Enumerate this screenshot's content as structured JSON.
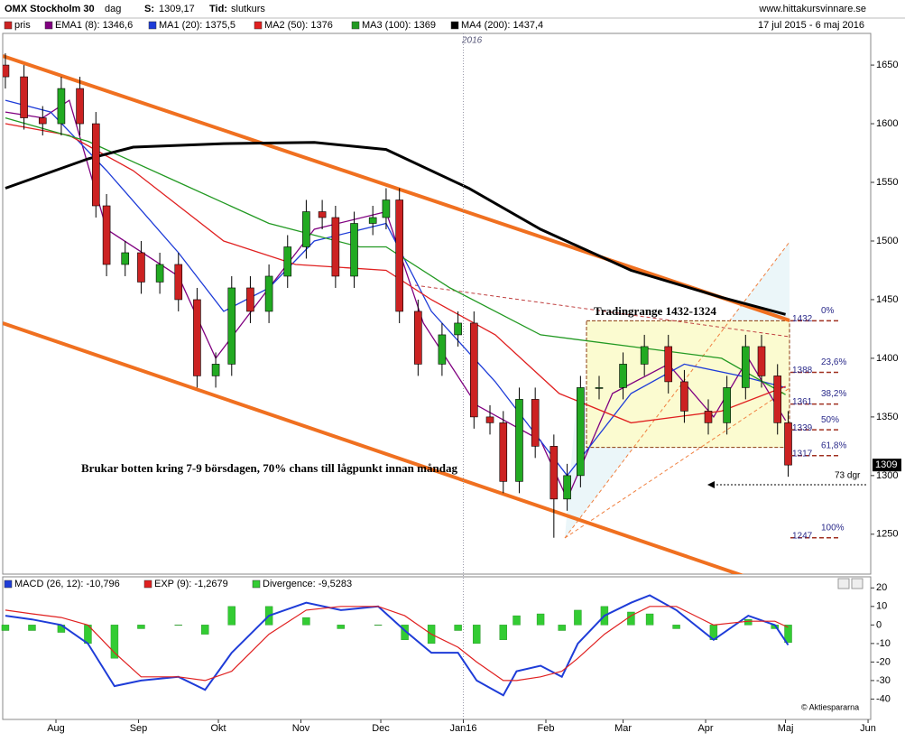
{
  "chart_data": [
    {
      "type": "candlestick",
      "title": "OMX Stockholm 30",
      "interval": "dag",
      "close_label": "S:",
      "close_value": "1309,17",
      "time_label": "Tid:",
      "time_value": "slutkurs",
      "source": "www.hittakursvinnare.se",
      "date_range": "17 jul 2015 - 6 maj 2016",
      "year_marker": "2016",
      "xlim": [
        11,
        337
      ],
      "xticks": [
        {
          "value": 31,
          "label": "Aug"
        },
        {
          "value": 62,
          "label": "Sep"
        },
        {
          "value": 92,
          "label": "Okt"
        },
        {
          "value": 123,
          "label": "Nov"
        },
        {
          "value": 153,
          "label": "Dec"
        },
        {
          "value": 184,
          "label": "Jan16"
        },
        {
          "value": 215,
          "label": "Feb"
        },
        {
          "value": 244,
          "label": "Mar"
        },
        {
          "value": 275,
          "label": "Apr"
        },
        {
          "value": 305,
          "label": "Maj"
        },
        {
          "value": 336,
          "label": "Jun"
        }
      ],
      "ylim": [
        1216,
        1677
      ],
      "yticks": [
        1250,
        1300,
        1350,
        1400,
        1450,
        1500,
        1550,
        1600,
        1650
      ],
      "last_price": 1309,
      "annotations": {
        "range": "Tradingrange 1432-1324",
        "note": "Brukar botten kring 7-9 börsdagen, 70% chans till lågpunkt innan måndag",
        "days": "73 dgr"
      },
      "fib_levels": [
        {
          "level": 1432,
          "pct": "0%"
        },
        {
          "level": 1388,
          "pct": "23,6%"
        },
        {
          "level": 1361,
          "pct": "38,2%"
        },
        {
          "level": 1339,
          "pct": "50%"
        },
        {
          "level": 1317,
          "pct": "61,8%"
        },
        {
          "level": 1247,
          "pct": "100%"
        }
      ],
      "candles": {
        "name": "pris",
        "color": "#cc2222",
        "up_color": "#22aa22",
        "x": [
          12,
          19,
          26,
          33,
          40,
          46,
          50,
          57,
          63,
          70,
          77,
          84,
          91,
          97,
          104,
          111,
          118,
          125,
          131,
          136,
          143,
          150,
          155,
          160,
          167,
          176,
          182,
          188,
          194,
          199,
          205,
          211,
          218,
          223,
          228,
          235,
          244,
          252,
          261,
          267,
          276,
          283,
          290,
          296,
          302,
          306
        ],
        "open": [
          1650,
          1640,
          1605,
          1600,
          1630,
          1600,
          1530,
          1480,
          1490,
          1465,
          1480,
          1450,
          1385,
          1395,
          1460,
          1440,
          1470,
          1495,
          1525,
          1520,
          1470,
          1515,
          1520,
          1535,
          1440,
          1395,
          1420,
          1430,
          1350,
          1345,
          1295,
          1365,
          1325,
          1280,
          1300,
          1375,
          1375,
          1395,
          1410,
          1380,
          1355,
          1345,
          1375,
          1410,
          1385,
          1345
        ],
        "high": [
          1660,
          1650,
          1615,
          1640,
          1640,
          1610,
          1540,
          1500,
          1500,
          1490,
          1490,
          1460,
          1405,
          1470,
          1470,
          1480,
          1505,
          1535,
          1535,
          1530,
          1525,
          1530,
          1545,
          1545,
          1450,
          1430,
          1440,
          1440,
          1360,
          1355,
          1375,
          1375,
          1335,
          1310,
          1385,
          1385,
          1405,
          1420,
          1420,
          1390,
          1365,
          1385,
          1420,
          1420,
          1395,
          1355
        ],
        "low": [
          1630,
          1595,
          1590,
          1590,
          1590,
          1520,
          1470,
          1470,
          1455,
          1455,
          1440,
          1375,
          1375,
          1385,
          1430,
          1430,
          1460,
          1485,
          1510,
          1460,
          1460,
          1505,
          1510,
          1430,
          1385,
          1385,
          1410,
          1340,
          1335,
          1285,
          1285,
          1315,
          1247,
          1270,
          1290,
          1365,
          1365,
          1385,
          1370,
          1345,
          1335,
          1335,
          1365,
          1375,
          1335,
          1299
        ],
        "close": [
          1640,
          1605,
          1600,
          1630,
          1600,
          1530,
          1480,
          1490,
          1465,
          1480,
          1450,
          1385,
          1395,
          1460,
          1440,
          1470,
          1495,
          1525,
          1520,
          1470,
          1515,
          1520,
          1535,
          1440,
          1395,
          1420,
          1430,
          1350,
          1345,
          1295,
          1365,
          1325,
          1280,
          1300,
          1375,
          1375,
          1395,
          1410,
          1380,
          1355,
          1345,
          1375,
          1410,
          1385,
          1345,
          1309
        ]
      },
      "series": [
        {
          "name": "EMA1 (8): 1346,6",
          "color": "#800080",
          "x": [
            12,
            26,
            36,
            50,
            77,
            91,
            111,
            128,
            155,
            169,
            189,
            213,
            223,
            240,
            261,
            278,
            291,
            305
          ],
          "values": [
            1610,
            1605,
            1620,
            1510,
            1470,
            1400,
            1460,
            1510,
            1525,
            1430,
            1360,
            1330,
            1280,
            1370,
            1395,
            1350,
            1400,
            1347
          ]
        },
        {
          "name": "MA1 (20): 1375,5",
          "color": "#1e3cd8",
          "x": [
            12,
            29,
            50,
            77,
            94,
            111,
            128,
            155,
            172,
            196,
            223,
            247,
            267,
            288,
            305
          ],
          "values": [
            1620,
            1610,
            1560,
            1490,
            1440,
            1460,
            1500,
            1515,
            1440,
            1380,
            1300,
            1370,
            1395,
            1385,
            1375
          ]
        },
        {
          "name": "MA2 (50): 1376",
          "color": "#e02020",
          "x": [
            12,
            36,
            60,
            94,
            121,
            155,
            172,
            196,
            220,
            247,
            281,
            305
          ],
          "values": [
            1600,
            1590,
            1560,
            1500,
            1480,
            1475,
            1450,
            1420,
            1370,
            1345,
            1355,
            1376
          ]
        },
        {
          "name": "MA3 (100): 1369",
          "color": "#229922",
          "x": [
            12,
            43,
            77,
            111,
            145,
            155,
            179,
            213,
            247,
            281,
            305
          ],
          "values": [
            1605,
            1585,
            1550,
            1515,
            1495,
            1495,
            1460,
            1420,
            1410,
            1400,
            1369
          ]
        },
        {
          "name": "MA4 (200): 1437,4",
          "color": "#000000",
          "width": 3,
          "x": [
            12,
            43,
            60,
            94,
            128,
            155,
            186,
            213,
            247,
            281,
            305
          ],
          "values": [
            1545,
            1570,
            1580,
            1583,
            1584,
            1578,
            1545,
            1510,
            1475,
            1452,
            1437.4
          ]
        }
      ]
    },
    {
      "type": "macd",
      "copyright": "© Aktiespararna",
      "xlim": [
        11,
        337
      ],
      "ylim": [
        -51,
        26
      ],
      "yticks": [
        -40,
        -30,
        -20,
        -10,
        0,
        10,
        20
      ],
      "x": [
        12,
        22,
        33,
        43,
        53,
        63,
        77,
        87,
        97,
        111,
        125,
        138,
        152,
        162,
        172,
        182,
        189,
        199,
        204,
        213,
        221,
        227,
        237,
        247,
        254,
        264,
        278,
        291,
        301,
        306
      ],
      "series": [
        {
          "name": "MACD (26, 12): -10,796",
          "color": "#1e3cd8",
          "style": "line",
          "values": [
            5,
            3,
            0,
            -10,
            -33,
            -30,
            -28,
            -35,
            -15,
            5,
            12,
            8,
            10,
            -3,
            -15,
            -15,
            -30,
            -38,
            -25,
            -22,
            -28,
            -10,
            5,
            12,
            16,
            8,
            -8,
            5,
            0,
            -10.8
          ]
        },
        {
          "name": "EXP (9): -1,2679",
          "color": "#e02020",
          "style": "line",
          "values": [
            8,
            6,
            4,
            0,
            -15,
            -28,
            -28,
            -30,
            -25,
            -5,
            8,
            10,
            10,
            5,
            -5,
            -12,
            -20,
            -30,
            -30,
            -28,
            -25,
            -18,
            -5,
            5,
            10,
            10,
            0,
            2,
            2,
            -1.3
          ]
        },
        {
          "name": "Divergence: -9,5283",
          "color": "#33cc33",
          "style": "bar",
          "values": [
            -3,
            -3,
            -4,
            -10,
            -18,
            -2,
            0,
            -5,
            10,
            10,
            4,
            -2,
            0,
            -8,
            -10,
            -3,
            -10,
            -8,
            5,
            6,
            -3,
            8,
            10,
            7,
            6,
            -2,
            -8,
            3,
            -2,
            -9.5
          ]
        }
      ]
    }
  ]
}
